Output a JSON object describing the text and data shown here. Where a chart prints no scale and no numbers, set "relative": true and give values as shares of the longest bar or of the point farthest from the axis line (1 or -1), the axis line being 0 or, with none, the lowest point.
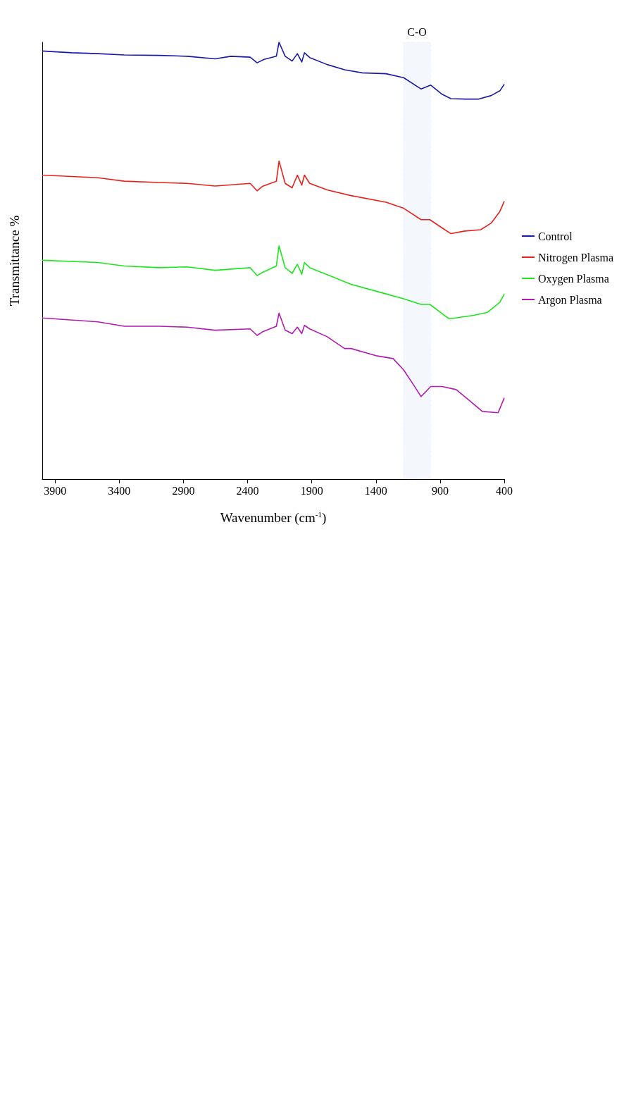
{
  "chart_data": {
    "type": "line",
    "relative": true,
    "xlabel": "Wavenumber (cm$^{-1}$)",
    "ylabel": "Transmittance %",
    "xlim": [
      4000,
      400
    ],
    "xticks": [
      3900,
      3400,
      2900,
      2400,
      1900,
      1400,
      900,
      400
    ],
    "legend": "right",
    "bands": [
      {
        "axis": "x",
        "from": 975,
        "to": 1185,
        "label": "C-O",
        "color": "#6fa8dc"
      }
    ],
    "series": [
      {
        "name": "Control",
        "color": "#1a1aa6",
        "x": [
          400,
          434,
          502,
          598,
          707,
          816,
          884,
          973,
          1048,
          1184,
          1321,
          1507,
          1644,
          1780,
          1916,
          1957,
          1978,
          2012,
          2053,
          2107,
          2155,
          2176,
          2271,
          2326,
          2380,
          2530,
          2653,
          2871,
          3088,
          3361,
          3566,
          3770,
          4000
        ],
        "values": [
          0.904,
          0.889,
          0.878,
          0.87,
          0.87,
          0.871,
          0.881,
          0.902,
          0.893,
          0.919,
          0.928,
          0.93,
          0.937,
          0.949,
          0.965,
          0.976,
          0.955,
          0.974,
          0.957,
          0.968,
          1.0,
          0.968,
          0.961,
          0.953,
          0.966,
          0.968,
          0.962,
          0.968,
          0.97,
          0.971,
          0.974,
          0.976,
          0.98
        ]
      },
      {
        "name": "Nitrogen Plasma",
        "color": "#e8211c",
        "x": [
          400,
          434,
          502,
          584,
          707,
          816,
          884,
          980,
          1048,
          1184,
          1321,
          1594,
          1780,
          1916,
          1957,
          1978,
          2012,
          2053,
          2107,
          2155,
          2176,
          2285,
          2326,
          2380,
          2653,
          2871,
          3088,
          3361,
          3566,
          4000
        ],
        "values": [
          0.636,
          0.613,
          0.586,
          0.571,
          0.568,
          0.562,
          0.575,
          0.594,
          0.594,
          0.62,
          0.634,
          0.649,
          0.662,
          0.677,
          0.696,
          0.673,
          0.696,
          0.667,
          0.677,
          0.728,
          0.682,
          0.67,
          0.66,
          0.677,
          0.671,
          0.677,
          0.679,
          0.682,
          0.69,
          0.696
        ]
      },
      {
        "name": "Oxygen Plasma",
        "color": "#1ee61e",
        "x": [
          400,
          434,
          530,
          639,
          830,
          884,
          980,
          1048,
          1184,
          1321,
          1594,
          1780,
          1916,
          1957,
          1978,
          2012,
          2053,
          2107,
          2155,
          2176,
          2285,
          2326,
          2380,
          2653,
          2871,
          3088,
          3361,
          3566,
          4000
        ],
        "values": [
          0.424,
          0.405,
          0.382,
          0.375,
          0.367,
          0.379,
          0.4,
          0.4,
          0.413,
          0.424,
          0.446,
          0.468,
          0.484,
          0.496,
          0.469,
          0.492,
          0.471,
          0.484,
          0.534,
          0.488,
          0.473,
          0.466,
          0.484,
          0.478,
          0.486,
          0.484,
          0.488,
          0.496,
          0.501
        ]
      },
      {
        "name": "Argon Plasma",
        "color": "#b01cb0",
        "x": [
          400,
          448,
          571,
          680,
          775,
          884,
          973,
          1048,
          1116,
          1184,
          1266,
          1389,
          1594,
          1644,
          1780,
          1916,
          1957,
          1978,
          2012,
          2053,
          2107,
          2155,
          2176,
          2285,
          2326,
          2380,
          2653,
          2871,
          3088,
          3361,
          3566,
          4000
        ],
        "values": [
          0.186,
          0.152,
          0.155,
          0.182,
          0.205,
          0.212,
          0.212,
          0.189,
          0.22,
          0.25,
          0.276,
          0.282,
          0.299,
          0.299,
          0.326,
          0.344,
          0.352,
          0.333,
          0.348,
          0.333,
          0.341,
          0.38,
          0.35,
          0.337,
          0.329,
          0.344,
          0.341,
          0.348,
          0.35,
          0.35,
          0.36,
          0.369
        ]
      }
    ]
  }
}
